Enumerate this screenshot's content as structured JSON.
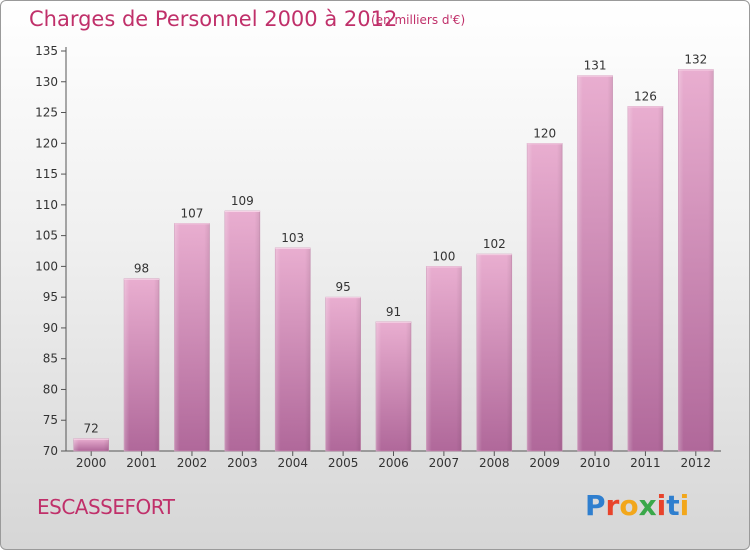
{
  "title": "Charges de Personnel 2000 à 2012",
  "subtitle": "(en milliers d'€)",
  "commune": "ESCASSEFORT",
  "logo": {
    "text": "Proxiti",
    "letter_colors": [
      "#2f7fcf",
      "#e8432b",
      "#f2a71b",
      "#3aa84a",
      "#e8432b",
      "#2f7fcf",
      "#f2a71b"
    ]
  },
  "colors": {
    "accent": "#c0306a",
    "bar_top": "#e9aed0",
    "bar_bottom": "#b0689a"
  },
  "chart_data": {
    "type": "bar",
    "categories": [
      "2000",
      "2001",
      "2002",
      "2003",
      "2004",
      "2005",
      "2006",
      "2007",
      "2008",
      "2009",
      "2010",
      "2011",
      "2012"
    ],
    "values": [
      72,
      98,
      107,
      109,
      103,
      95,
      91,
      100,
      102,
      120,
      131,
      126,
      132
    ],
    "ylim": [
      70,
      135
    ],
    "yticks": [
      70,
      75,
      80,
      85,
      90,
      95,
      100,
      105,
      110,
      115,
      120,
      125,
      130,
      135
    ],
    "grid": false,
    "legend": "none",
    "data_labels": true
  }
}
